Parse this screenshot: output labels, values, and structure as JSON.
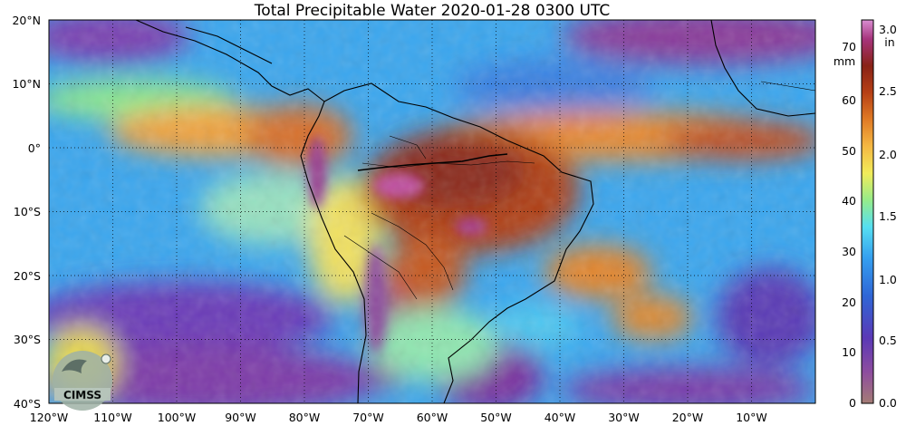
{
  "title": "Total Precipitable Water  2020-01-28 0300 UTC",
  "map": {
    "lat_labels": [
      "20°N",
      "10°N",
      "0°",
      "10°S",
      "20°S",
      "30°S",
      "40°S"
    ],
    "lon_labels": [
      "120°W",
      "110°W",
      "100°W",
      "90°W",
      "80°W",
      "70°W",
      "60°W",
      "50°W",
      "40°W",
      "30°W",
      "20°W",
      "10°W"
    ],
    "lat_range": [
      -40,
      20
    ],
    "lon_range": [
      -120,
      0
    ],
    "gridlines": "dotted"
  },
  "colorbar": {
    "left_unit": "mm",
    "right_unit": "in",
    "mm_ticks": [
      "0",
      "10",
      "20",
      "30",
      "40",
      "50",
      "60",
      "70"
    ],
    "in_ticks": [
      "0.0",
      "0.5",
      "1.0",
      "1.5",
      "2.0",
      "2.5",
      "3.0"
    ],
    "mm_range": [
      0,
      76
    ],
    "colors": [
      "#a47c75",
      "#8e4d9e",
      "#5b39b6",
      "#2f66d6",
      "#35a0f0",
      "#56dff1",
      "#96ec8a",
      "#f1ec5a",
      "#f5b843",
      "#e07b25",
      "#b64015",
      "#892216",
      "#a6347c",
      "#d98ed3"
    ]
  },
  "logo": {
    "text": "CIMSS"
  },
  "colors": {
    "dry": "#7a2fa0",
    "moist_low": "#3da0f0",
    "moist_mid": "#8fe88b",
    "moist_high": "#f0a03e",
    "saturated": "#8e2a1c",
    "coast": "#000000"
  }
}
